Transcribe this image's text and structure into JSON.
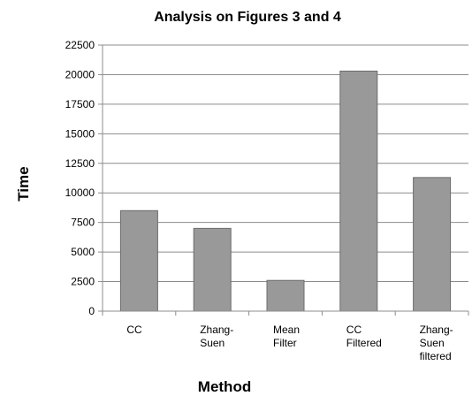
{
  "chart_data": {
    "type": "bar",
    "title": "Analysis on Figures 3 and 4",
    "xlabel": "Method",
    "ylabel": "Time",
    "categories": [
      "CC",
      "Zhang-Suen",
      "Mean Filter",
      "CC Filtered",
      "Zhang-Suen filtered"
    ],
    "category_lines": [
      [
        "CC"
      ],
      [
        "Zhang-",
        "Suen"
      ],
      [
        "Mean",
        "Filter"
      ],
      [
        "CC",
        "Filtered"
      ],
      [
        "Zhang-",
        "Suen",
        "filtered"
      ]
    ],
    "values": [
      8500,
      7000,
      2600,
      20300,
      11300
    ],
    "ylim": [
      0,
      22500
    ],
    "yticks": [
      0,
      2500,
      5000,
      7500,
      10000,
      12500,
      15000,
      17500,
      20000,
      22500
    ],
    "grid": true,
    "legend": "none",
    "colors": {
      "bar": "#999999",
      "bar_edge": "#6b6b6b",
      "grid": "#8c8c8c",
      "axis": "#8c8c8c"
    }
  }
}
